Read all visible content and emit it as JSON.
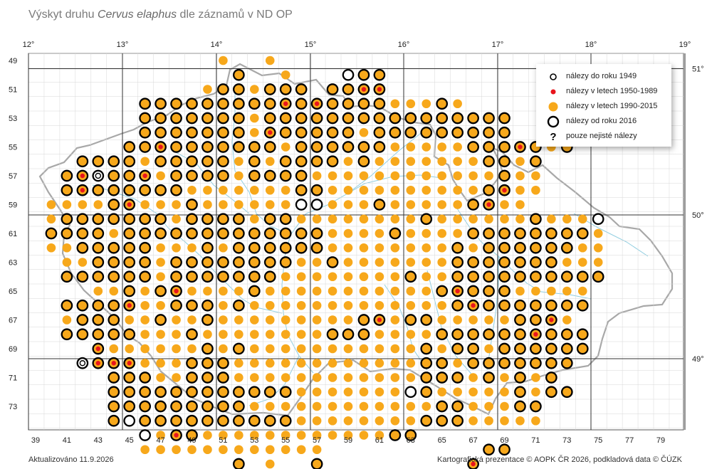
{
  "title": {
    "prefix": "Výskyt druhu ",
    "species": "Cervus elaphus",
    "suffix": " dle záznamů v ND OP"
  },
  "colors": {
    "orange": "#f7a81b",
    "red": "#e8141c",
    "grid": "#555555",
    "water": "#8fcde0",
    "border": "#a8a8a8"
  },
  "axes": {
    "lon_top": [
      "12°",
      "13°",
      "14°",
      "15°",
      "16°",
      "17°",
      "18°",
      "19°"
    ],
    "lat_right": [
      {
        "label": "51°",
        "row": 49
      },
      {
        "label": "50°",
        "row": 59
      },
      {
        "label": "49°",
        "row": 69
      }
    ],
    "row_labels": [
      "49",
      "51",
      "53",
      "55",
      "57",
      "59",
      "61",
      "63",
      "65",
      "67",
      "69",
      "71",
      "73"
    ],
    "col_labels": [
      "39",
      "41",
      "43",
      "45",
      "47",
      "49",
      "51",
      "53",
      "55",
      "57",
      "59",
      "61",
      "63",
      "65",
      "67",
      "69",
      "71",
      "73",
      "75",
      "77",
      "79"
    ]
  },
  "legend": [
    {
      "symbol": "small-ring",
      "label": "nálezy do roku 1949"
    },
    {
      "symbol": "red-dot",
      "label": "nálezy v letech 1950-1989"
    },
    {
      "symbol": "orange-dot",
      "label": "nálezy v letech 1990-2015"
    },
    {
      "symbol": "big-ring",
      "label": "nálezy od roku 2016"
    },
    {
      "symbol": "question",
      "label": "pouze nejisté nálezy"
    }
  ],
  "occurrence_grid": {
    "first_row": 49,
    "first_col": 39,
    "codes": "O=orange dot, B=orange dot with black ring (2016+), R=orange+red dot, Q=orange+red+ring, W=white with black ring, w=white with small ring, r=red only",
    "rows": [
      "............O..O....................",
      ".............B..O...WBB.............",
      "...........OBBOBBB.BBQQ.............",
      ".......BBBBBBBBBQBQBBBBOOOBO........",
      ".......BBBBBBBOBBBBBBBBBBBBBBBB.....",
      ".......BBBBBBBOQBBBBBOBBBBBBBBB.....",
      "......BBQBBBBBBBOBBBBBBOOOOOBBBQBOB...",
      "...BBBBOBBBBBOBOBBBBOBOOOOOOOBBOB...",
      "..BQwBBQOBBBBOBBBBOOOOOOOOOOOOBOO....",
      "..BQBBBBBBOOOOOOOBBOOOOOOOOOOBQOO....",
      ".OOOOBQOOOBOOOOOOWWOOOBOOOOOBQOO....",
      ".OBBBBBBBOBBBBOBBOOOOOOOOBOOOOOOBOOOW",
      ".BBBBOBBBBBBBBBBBBBOOOOBOOOOBBBBBBBBO",
      ".OOBBBBBOOOBOBBBBBBOOOOOOOOBOBBBBBBOO",
      "..OOBBBBOBBBBBBBBOOBOOOOOOOBBBBBBBOOO",
      "..BBBBBBOBBBBBBBOOOOOOOOBOOBBBBBBBBBB",
      "....OOBOBQOOOOBOOOOOOOOOOOBQBBBOOOOO",
      "..BBBBQOOBBBOBOOOOOOOOOOOOOBQBBBBBBB",
      "..OBBBOOBOOBOOOOOOOOOBQOBBOOOOOBBQO",
      "..BBBBBOOOBOOOOOOOOBBBOOOOBBBBBBQBBB",
      "....QOOOOOOBOBOOOOOOOOOOOBOBBOBBBBBB",
      "...wQQQOOOBBBOOOOOOOOOOOOBBOBBBBBBB",
      ".....BBBOOBBBOOOOOOOOOOOOBBBOBOBOB",
      ".....BBBBBBBBBBBBOOOOOOOWBOOOOOBOBB",
      ".....BBBBBBBBBOOOOOOOOOOOOBBOOOBB",
      ".....BWBBBBBBBBBBOOOOOOOOBBBOOOOO",
      ".......WOQBOOOOOOOOOOOOBB",
      ".......OOOOOOOOOOOO..........BB",
      ".............B.O..B.........Q"
    ]
  },
  "footer": {
    "left": "Aktualizováno 11.9.2026",
    "right": "Kartografická prezentace © AOPK ČR 2026, podkladová data © ČÚZK"
  }
}
